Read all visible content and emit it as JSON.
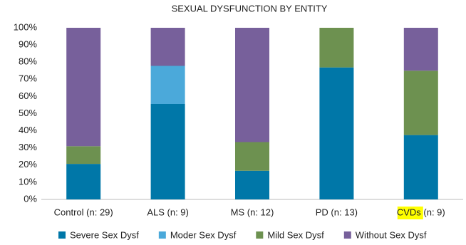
{
  "chart_data": {
    "type": "stacked_bar",
    "title": "SEXUAL DYSFUNCTION BY ENTITY",
    "categories": [
      "Control (n: 29)",
      "ALS (n: 9)",
      "MS (n: 12)",
      "PD (n: 13)",
      "CVDs (n: 9)"
    ],
    "series": [
      {
        "name": "Severe Sex Dysf",
        "color": "#0077a8",
        "values": [
          20.7,
          55.6,
          16.7,
          76.9,
          37.5
        ]
      },
      {
        "name": "Moder Sex Dysf",
        "color": "#4ba9da",
        "values": [
          0,
          22.2,
          0,
          0,
          0
        ]
      },
      {
        "name": "Mild Sex Dysf",
        "color": "#6d9150",
        "values": [
          10.3,
          0,
          16.7,
          23.1,
          37.5
        ]
      },
      {
        "name": "Without Sex Dysf",
        "color": "#77609b",
        "values": [
          69.0,
          22.2,
          66.6,
          0,
          25.0
        ]
      }
    ],
    "ylim": [
      0,
      100
    ],
    "yticks": [
      {
        "value": 0,
        "label": "0%"
      },
      {
        "value": 10,
        "label": "10%"
      },
      {
        "value": 20,
        "label": "20%"
      },
      {
        "value": 30,
        "label": "30%"
      },
      {
        "value": 40,
        "label": "40%"
      },
      {
        "value": 50,
        "label": "50%"
      },
      {
        "value": 60,
        "label": "60%"
      },
      {
        "value": 70,
        "label": "70%"
      },
      {
        "value": 80,
        "label": "80%"
      },
      {
        "value": 90,
        "label": "90%"
      },
      {
        "value": 100,
        "label": "100%"
      }
    ],
    "legend": "bottom"
  }
}
